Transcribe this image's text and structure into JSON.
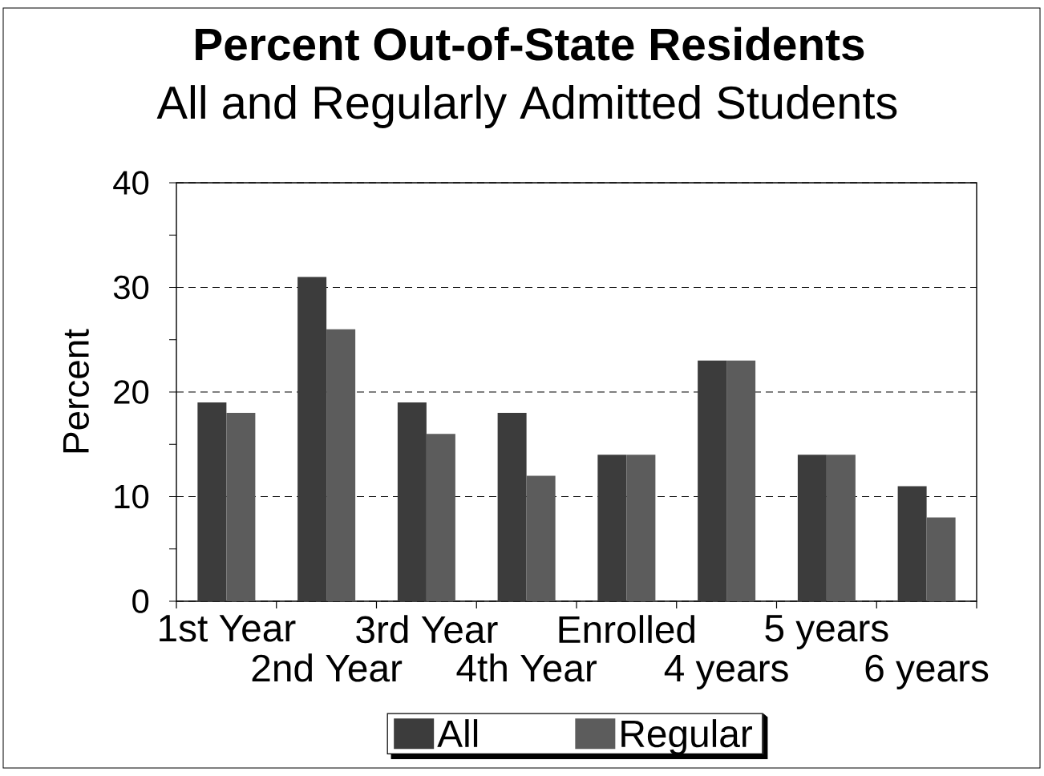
{
  "chart_data": {
    "type": "bar",
    "title": "Percent Out-of-State Residents",
    "subtitle": "All and Regularly Admitted Students",
    "ylabel": "Percent",
    "categories": [
      "1st Year",
      "2nd Year",
      "3rd Year",
      "4th Year",
      "Enrolled",
      "4 years",
      "5 years",
      "6 years"
    ],
    "series": [
      {
        "name": "All",
        "color": "#3c3c3c",
        "values": [
          19,
          31,
          19,
          18,
          14,
          23,
          14,
          11
        ]
      },
      {
        "name": "Regular",
        "color": "#5c5c5c",
        "values": [
          18,
          26,
          16,
          12,
          14,
          23,
          14,
          8
        ]
      }
    ],
    "ylim": [
      0,
      40
    ],
    "yticks": [
      0,
      {
        "value": 5,
        "label": null
      },
      10,
      {
        "value": 15,
        "label": null
      },
      20,
      {
        "value": 25,
        "label": null
      },
      30,
      {
        "value": 35,
        "label": null
      },
      40
    ],
    "grid": "y",
    "legend": "bottom"
  }
}
